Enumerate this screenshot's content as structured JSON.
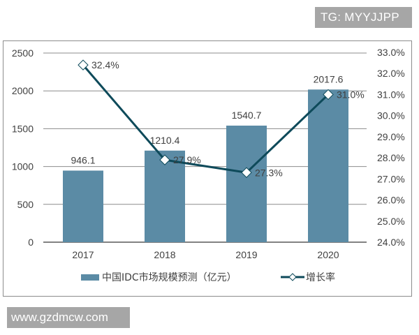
{
  "watermarks": {
    "top": "TG: MYYJJPP",
    "bottom": "www.gzdmcw.com"
  },
  "legend": {
    "bar_label": "中国IDC市场规模预测（亿元）",
    "line_label": "增长率"
  },
  "colors": {
    "bar": "#5b8ba5",
    "line": "#0e4a5a",
    "grid": "#8c8c8c",
    "text": "#404040",
    "watermark_bg": "#a6a6a6"
  },
  "chart_data": {
    "type": "bar+line",
    "title": "",
    "categories": [
      "2017",
      "2018",
      "2019",
      "2020"
    ],
    "series": [
      {
        "name": "中国IDC市场规模预测（亿元）",
        "type": "bar",
        "axis": "left",
        "values": [
          946.1,
          1210.4,
          1540.7,
          2017.6
        ],
        "data_labels": [
          "946.1",
          "1210.4",
          "1540.7",
          "2017.6"
        ]
      },
      {
        "name": "增长率",
        "type": "line",
        "axis": "right",
        "marker": "diamond-open",
        "values": [
          32.4,
          27.9,
          27.3,
          31.0
        ],
        "data_labels": [
          "32.4%",
          "27.9%",
          "27.3%",
          "31.0%"
        ]
      }
    ],
    "left_axis": {
      "ylim": [
        0,
        2500
      ],
      "ticks": [
        "0",
        "500",
        "1000",
        "1500",
        "2000",
        "2500"
      ]
    },
    "right_axis": {
      "ylim": [
        24.0,
        33.0
      ],
      "ticks": [
        "24.0%",
        "25.0%",
        "26.0%",
        "27.0%",
        "28.0%",
        "29.0%",
        "30.0%",
        "31.0%",
        "32.0%",
        "33.0%"
      ]
    },
    "xlabel": "",
    "ylabel": "",
    "grid": true,
    "legend_position": "bottom"
  }
}
